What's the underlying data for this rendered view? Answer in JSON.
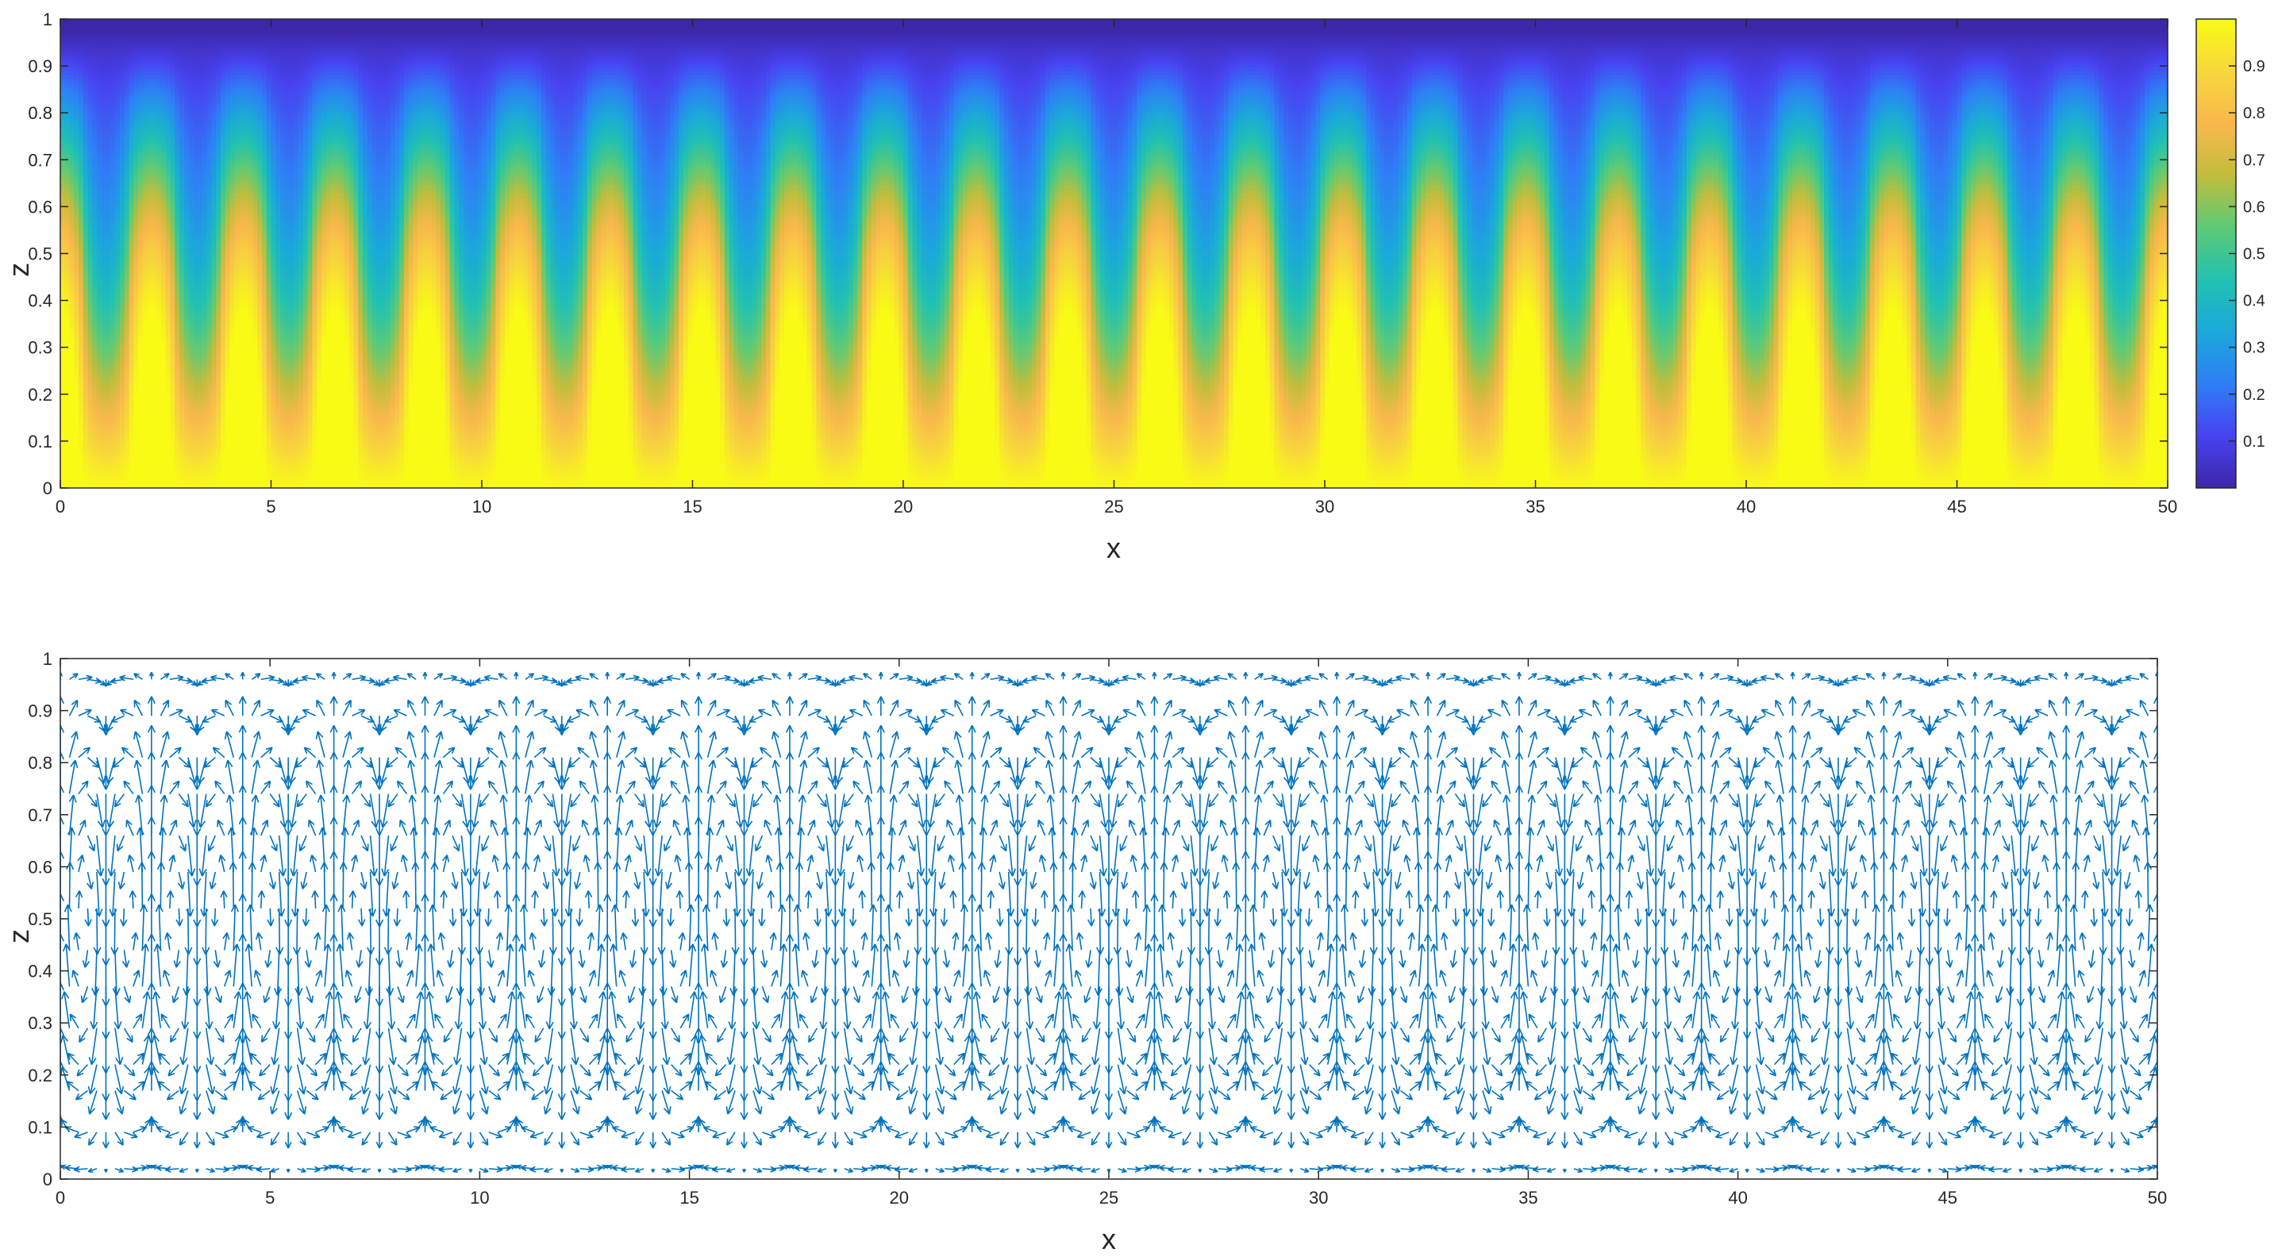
{
  "chart_data": [
    {
      "type": "heatmap",
      "xlabel": "x",
      "ylabel": "z",
      "xlim": [
        0,
        50
      ],
      "ylim": [
        0,
        1
      ],
      "xticks": [
        0,
        5,
        10,
        15,
        20,
        25,
        30,
        35,
        40,
        45,
        50
      ],
      "yticks": [
        0,
        0.1,
        0.2,
        0.3,
        0.4,
        0.5,
        0.6,
        0.7,
        0.8,
        0.9,
        1
      ],
      "grid": false,
      "colormap": "parula",
      "colormap_stops": [
        "#3e26a8",
        "#4743f1",
        "#2f7ef6",
        "#1ba8da",
        "#22c1b1",
        "#5dca76",
        "#c1bd3c",
        "#f9b84c",
        "#f7d73b",
        "#f9fb15"
      ],
      "colorbar": {
        "location": "right",
        "limits": [
          0.0,
          1.0
        ],
        "ticks": [
          0.1,
          0.2,
          0.3,
          0.4,
          0.5,
          0.6,
          0.7,
          0.8,
          0.9
        ]
      },
      "pattern": {
        "description_value_cells": 23,
        "cell_period_x": 2.1739,
        "base_profile": "value decreases from ~1.0 at z=0 to ~0.0 at z=1",
        "plume_peak_value_at_z_0_7": 0.65,
        "trough_value_at_z_0_2": 0.45
      }
    },
    {
      "type": "quiver",
      "xlabel": "x",
      "ylabel": "z",
      "xlim": [
        0,
        50
      ],
      "ylim": [
        0,
        1
      ],
      "xticks": [
        0,
        5,
        10,
        15,
        20,
        25,
        30,
        35,
        40,
        45,
        50
      ],
      "yticks": [
        0,
        0.1,
        0.2,
        0.3,
        0.4,
        0.5,
        0.6,
        0.7,
        0.8,
        0.9,
        1
      ],
      "grid": false,
      "arrow_color": "#0072bd",
      "cells": 23,
      "cell_period_x": 2.1739,
      "z_levels": [
        0.02,
        0.09,
        0.17,
        0.22,
        0.29,
        0.37,
        0.44,
        0.52,
        0.59,
        0.66,
        0.74,
        0.81,
        0.89,
        0.96
      ]
    }
  ]
}
